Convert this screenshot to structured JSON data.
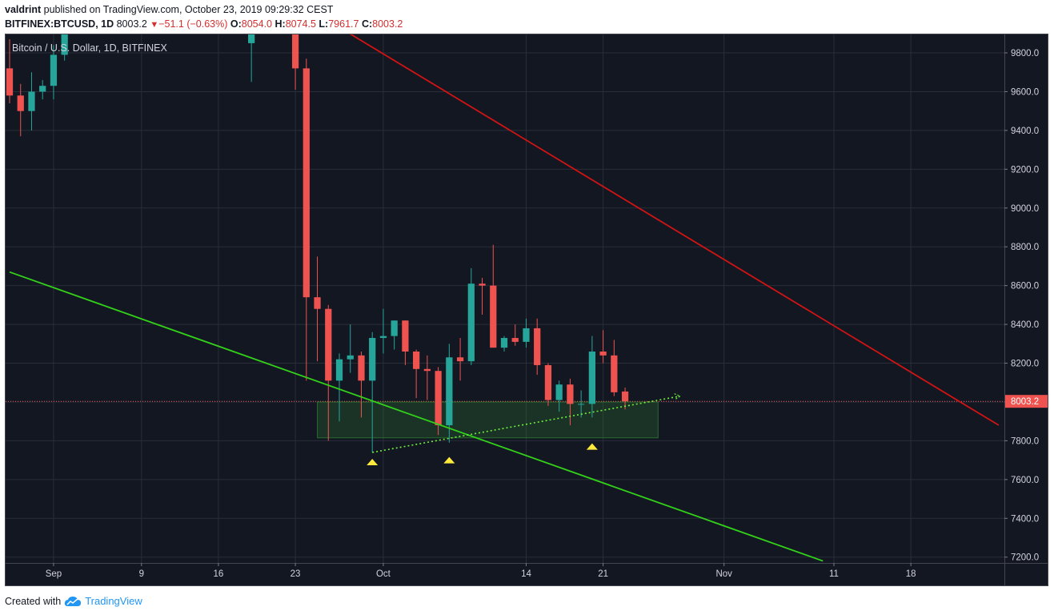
{
  "header": {
    "author": "valdrint",
    "published_text": "published on TradingView.com, October 23, 2019 09:29:32 CEST",
    "symbol": "BITFINEX:BTCUSD, 1D",
    "last": "8003.2",
    "change": "−51.1 (−0.63%)",
    "o_label": "O:",
    "o_value": "8054.0",
    "h_label": "H:",
    "h_value": "8074.5",
    "l_label": "L:",
    "l_value": "7961.7",
    "c_label": "C:",
    "c_value": "8003.2"
  },
  "footer": {
    "created_with": "Created with",
    "brand": "TradingView"
  },
  "colors": {
    "background": "#131722",
    "grid": "#2a2e39",
    "up": "#26a69a",
    "down": "#ef5350",
    "support_line": "#33d11a",
    "resistance_line": "#d01414",
    "dotted_trend": "#6ef13b",
    "price_line": "#ef5350",
    "marker": "#ffeb3b",
    "zone": "#2e7d32"
  },
  "chart_data": {
    "type": "candlestick",
    "title": "Bitcoin / U.S. Dollar, 1D, BITFINEX",
    "ylim": [
      7170,
      9895
    ],
    "y_ticks": [
      7200,
      7400,
      7600,
      7800,
      8000,
      8200,
      8400,
      8600,
      8800,
      9000,
      9200,
      9400,
      9600,
      9800
    ],
    "y_tick_labels": [
      "7200.0",
      "7400.0",
      "7600.0",
      "7800.0",
      "8000.0",
      "8200.0",
      "8400.0",
      "8600.0",
      "8800.0",
      "9000.0",
      "9200.0",
      "9400.0",
      "9600.0",
      "9800.0"
    ],
    "x_range": [
      "2019-08-28",
      "2019-11-26"
    ],
    "x_ticks": [
      {
        "date": "2019-09-01",
        "label": "Sep"
      },
      {
        "date": "2019-09-09",
        "label": "9"
      },
      {
        "date": "2019-09-16",
        "label": "16"
      },
      {
        "date": "2019-09-23",
        "label": "23"
      },
      {
        "date": "2019-10-01",
        "label": "Oct"
      },
      {
        "date": "2019-10-14",
        "label": "14"
      },
      {
        "date": "2019-10-21",
        "label": "21"
      },
      {
        "date": "2019-11-01",
        "label": "Nov"
      },
      {
        "date": "2019-11-11",
        "label": "11"
      },
      {
        "date": "2019-11-18",
        "label": "18"
      }
    ],
    "current_price": 8003.2,
    "current_price_label": "8003.2",
    "candles": [
      {
        "date": "2019-08-28",
        "o": 9720,
        "h": 9870,
        "l": 9540,
        "c": 9580
      },
      {
        "date": "2019-08-29",
        "o": 9580,
        "h": 9640,
        "l": 9370,
        "c": 9500
      },
      {
        "date": "2019-08-30",
        "o": 9500,
        "h": 9700,
        "l": 9400,
        "c": 9600
      },
      {
        "date": "2019-08-31",
        "o": 9600,
        "h": 9660,
        "l": 9560,
        "c": 9630
      },
      {
        "date": "2019-09-01",
        "o": 9630,
        "h": 9840,
        "l": 9560,
        "c": 9790
      },
      {
        "date": "2019-09-02",
        "o": 9790,
        "h": 9895,
        "l": 9760,
        "c": 9895
      },
      {
        "date": "2019-09-19",
        "o": 9850,
        "h": 9895,
        "l": 9650,
        "c": 9895
      },
      {
        "date": "2019-09-23",
        "o": 9895,
        "h": 9895,
        "l": 9610,
        "c": 9720
      },
      {
        "date": "2019-09-24",
        "o": 9720,
        "h": 9770,
        "l": 8110,
        "c": 8540
      },
      {
        "date": "2019-09-25",
        "o": 8540,
        "h": 8750,
        "l": 8210,
        "c": 8480
      },
      {
        "date": "2019-09-26",
        "o": 8480,
        "h": 8500,
        "l": 7800,
        "c": 8110
      },
      {
        "date": "2019-09-27",
        "o": 8110,
        "h": 8250,
        "l": 7900,
        "c": 8220
      },
      {
        "date": "2019-09-28",
        "o": 8220,
        "h": 8400,
        "l": 8150,
        "c": 8240
      },
      {
        "date": "2019-09-29",
        "o": 8240,
        "h": 8260,
        "l": 7920,
        "c": 8110
      },
      {
        "date": "2019-09-30",
        "o": 8110,
        "h": 8360,
        "l": 7740,
        "c": 8330
      },
      {
        "date": "2019-10-01",
        "o": 8330,
        "h": 8480,
        "l": 8250,
        "c": 8340
      },
      {
        "date": "2019-10-02",
        "o": 8340,
        "h": 8420,
        "l": 8270,
        "c": 8420
      },
      {
        "date": "2019-10-03",
        "o": 8420,
        "h": 8420,
        "l": 8190,
        "c": 8260
      },
      {
        "date": "2019-10-04",
        "o": 8260,
        "h": 8270,
        "l": 8020,
        "c": 8170
      },
      {
        "date": "2019-10-05",
        "o": 8170,
        "h": 8240,
        "l": 8010,
        "c": 8160
      },
      {
        "date": "2019-10-06",
        "o": 8160,
        "h": 8180,
        "l": 7830,
        "c": 7880
      },
      {
        "date": "2019-10-07",
        "o": 7880,
        "h": 8300,
        "l": 7790,
        "c": 8230
      },
      {
        "date": "2019-10-08",
        "o": 8230,
        "h": 8330,
        "l": 8110,
        "c": 8210
      },
      {
        "date": "2019-10-09",
        "o": 8210,
        "h": 8690,
        "l": 8190,
        "c": 8610
      },
      {
        "date": "2019-10-10",
        "o": 8610,
        "h": 8640,
        "l": 8450,
        "c": 8600
      },
      {
        "date": "2019-10-11",
        "o": 8600,
        "h": 8810,
        "l": 8280,
        "c": 8280
      },
      {
        "date": "2019-10-12",
        "o": 8280,
        "h": 8340,
        "l": 8260,
        "c": 8330
      },
      {
        "date": "2019-10-13",
        "o": 8330,
        "h": 8400,
        "l": 8290,
        "c": 8310
      },
      {
        "date": "2019-10-14",
        "o": 8310,
        "h": 8430,
        "l": 8280,
        "c": 8380
      },
      {
        "date": "2019-10-15",
        "o": 8380,
        "h": 8430,
        "l": 8140,
        "c": 8190
      },
      {
        "date": "2019-10-16",
        "o": 8190,
        "h": 8200,
        "l": 7980,
        "c": 8010
      },
      {
        "date": "2019-10-17",
        "o": 8010,
        "h": 8110,
        "l": 7950,
        "c": 8090
      },
      {
        "date": "2019-10-18",
        "o": 8090,
        "h": 8120,
        "l": 7880,
        "c": 7990
      },
      {
        "date": "2019-10-19",
        "o": 7990,
        "h": 8060,
        "l": 7920,
        "c": 7990
      },
      {
        "date": "2019-10-20",
        "o": 7990,
        "h": 8340,
        "l": 7920,
        "c": 8260
      },
      {
        "date": "2019-10-21",
        "o": 8260,
        "h": 8370,
        "l": 8200,
        "c": 8240
      },
      {
        "date": "2019-10-22",
        "o": 8240,
        "h": 8320,
        "l": 8030,
        "c": 8050
      },
      {
        "date": "2019-10-23",
        "o": 8054,
        "h": 8074.5,
        "l": 7961.7,
        "c": 8003.2
      }
    ],
    "trend_lines": [
      {
        "name": "support",
        "color": "#33d11a",
        "p1": {
          "date": "2019-08-28",
          "price": 8670
        },
        "p2": {
          "date": "2019-11-10",
          "price": 7180
        }
      },
      {
        "name": "resistance",
        "color": "#d01414",
        "p1": {
          "date": "2019-09-25",
          "price": 10000
        },
        "p2": {
          "date": "2019-11-26",
          "price": 7880
        }
      },
      {
        "name": "rising-dotted",
        "color": "#6ef13b",
        "dotted": true,
        "p1": {
          "date": "2019-09-30",
          "price": 7740
        },
        "p2": {
          "date": "2019-10-28",
          "price": 8030
        }
      }
    ],
    "zone": {
      "from": "2019-09-25",
      "to": "2019-10-26",
      "top": 8000,
      "bottom": 7815
    },
    "markers": [
      {
        "date": "2019-09-30",
        "price": 7690
      },
      {
        "date": "2019-10-07",
        "price": 7700
      },
      {
        "date": "2019-10-20",
        "price": 7770
      }
    ]
  }
}
